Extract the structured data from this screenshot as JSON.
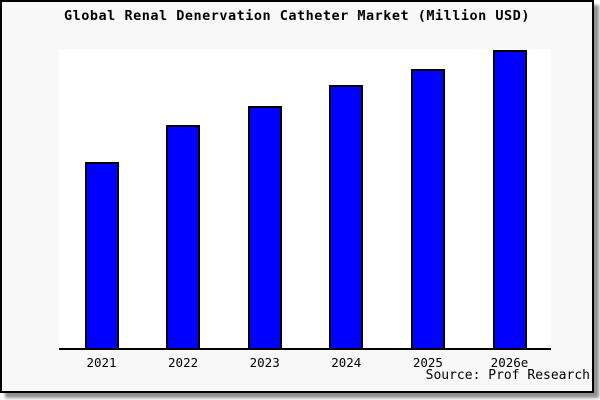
{
  "title": "Global Renal Denervation Catheter Market (Million USD)",
  "source_credit": "Source: Prof Research",
  "colors": {
    "bar_fill": "#0000ff",
    "bar_border": "#000000",
    "frame_background": "#f8f8f8",
    "plot_background": "#ffffff",
    "axis_line": "#000000",
    "text": "#000000"
  },
  "chart_data": {
    "type": "bar",
    "title": "Global Renal Denervation Catheter Market (Million USD)",
    "categories": [
      "2021",
      "2022",
      "2023",
      "2024",
      "2025",
      "2026e"
    ],
    "values": [
      62.6,
      74.9,
      81.2,
      87.9,
      93.5,
      99.8
    ],
    "value_unit": "percent of tallest-bar scale (no numeric y-axis labels shown)",
    "xlabel": "",
    "ylabel": "",
    "grid": false,
    "legend": false,
    "y_axis_tick_labels_visible": false,
    "annotation": "Source: Prof Research"
  }
}
